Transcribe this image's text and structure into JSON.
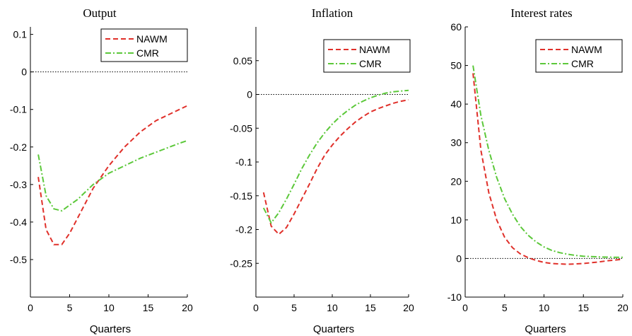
{
  "colors": {
    "NAWM": "#e0302a",
    "CMR": "#5cc83a",
    "zero_line": "#000000",
    "axis": "#000000"
  },
  "chart_data": [
    {
      "type": "line",
      "title": "Output",
      "xlabel": "Quarters",
      "ylabel": "",
      "xlim": [
        0,
        20
      ],
      "ylim": [
        -0.6,
        0.12
      ],
      "xticks": [
        0,
        5,
        10,
        15,
        20
      ],
      "xtick_labels": [
        "0",
        "5",
        "10",
        "15",
        "20"
      ],
      "yticks": [
        0.1,
        0,
        -0.1,
        -0.2,
        -0.3,
        -0.4,
        -0.5
      ],
      "ytick_labels": [
        "0.1",
        "0",
        "-0.1",
        "-0.2",
        "-0.3",
        "-0.4",
        "-0.5"
      ],
      "grid": false,
      "legend": "top-right",
      "zero_line": true,
      "x": [
        1,
        2,
        3,
        4,
        5,
        6,
        7,
        8,
        9,
        10,
        11,
        12,
        13,
        14,
        15,
        16,
        17,
        18,
        19,
        20
      ],
      "series": [
        {
          "name": "NAWM",
          "style": "dashed",
          "values": [
            -0.28,
            -0.42,
            -0.46,
            -0.46,
            -0.43,
            -0.39,
            -0.35,
            -0.31,
            -0.28,
            -0.25,
            -0.225,
            -0.2,
            -0.18,
            -0.16,
            -0.145,
            -0.13,
            -0.12,
            -0.11,
            -0.1,
            -0.09
          ]
        },
        {
          "name": "CMR",
          "style": "dashdot",
          "values": [
            -0.22,
            -0.33,
            -0.365,
            -0.37,
            -0.355,
            -0.34,
            -0.32,
            -0.3,
            -0.285,
            -0.27,
            -0.26,
            -0.25,
            -0.24,
            -0.23,
            -0.222,
            -0.214,
            -0.206,
            -0.198,
            -0.19,
            -0.183
          ]
        }
      ]
    },
    {
      "type": "line",
      "title": "Inflation",
      "xlabel": "Quarters",
      "ylabel": "",
      "xlim": [
        0,
        20
      ],
      "ylim": [
        -0.3,
        0.1
      ],
      "xticks": [
        0,
        5,
        10,
        15,
        20
      ],
      "xtick_labels": [
        "0",
        "5",
        "10",
        "15",
        "20"
      ],
      "yticks": [
        0.05,
        0,
        -0.05,
        -0.1,
        -0.15,
        -0.2,
        -0.25
      ],
      "ytick_labels": [
        "0.05",
        "0",
        "-0.05",
        "-0.1",
        "-0.15",
        "-0.2",
        "-0.25"
      ],
      "grid": false,
      "legend": "top-right",
      "zero_line": true,
      "x": [
        1,
        2,
        3,
        4,
        5,
        6,
        7,
        8,
        9,
        10,
        11,
        12,
        13,
        14,
        15,
        16,
        17,
        18,
        19,
        20
      ],
      "series": [
        {
          "name": "NAWM",
          "style": "dashed",
          "values": [
            -0.145,
            -0.195,
            -0.207,
            -0.197,
            -0.177,
            -0.155,
            -0.133,
            -0.11,
            -0.09,
            -0.075,
            -0.062,
            -0.051,
            -0.041,
            -0.033,
            -0.026,
            -0.021,
            -0.017,
            -0.013,
            -0.01,
            -0.008
          ]
        },
        {
          "name": "CMR",
          "style": "dashdot",
          "values": [
            -0.168,
            -0.19,
            -0.175,
            -0.155,
            -0.133,
            -0.11,
            -0.09,
            -0.072,
            -0.057,
            -0.044,
            -0.033,
            -0.024,
            -0.016,
            -0.01,
            -0.005,
            -0.001,
            0.002,
            0.004,
            0.005,
            0.006
          ]
        }
      ]
    },
    {
      "type": "line",
      "title": "Interest rates",
      "xlabel": "Quarters",
      "ylabel": "",
      "xlim": [
        0,
        20
      ],
      "ylim": [
        -10,
        60
      ],
      "xticks": [
        0,
        5,
        10,
        15,
        20
      ],
      "xtick_labels": [
        "0",
        "5",
        "10",
        "15",
        "20"
      ],
      "yticks": [
        60,
        50,
        40,
        30,
        20,
        10,
        0,
        -10
      ],
      "ytick_labels": [
        "60",
        "50",
        "40",
        "30",
        "20",
        "10",
        "0",
        "-10"
      ],
      "grid": false,
      "legend": "top-right",
      "zero_line": true,
      "x": [
        1,
        2,
        3,
        4,
        5,
        6,
        7,
        8,
        9,
        10,
        11,
        12,
        13,
        14,
        15,
        16,
        17,
        18,
        19,
        20
      ],
      "series": [
        {
          "name": "NAWM",
          "style": "dashed",
          "values": [
            48,
            28,
            17,
            10,
            5.5,
            2.8,
            1.2,
            0.2,
            -0.5,
            -1.0,
            -1.3,
            -1.4,
            -1.5,
            -1.4,
            -1.3,
            -1.1,
            -0.9,
            -0.6,
            -0.4,
            -0.2
          ]
        },
        {
          "name": "CMR",
          "style": "dashdot",
          "values": [
            50,
            37,
            28,
            21,
            15.5,
            11.5,
            8.3,
            6,
            4.3,
            3,
            2.1,
            1.5,
            1.1,
            0.8,
            0.6,
            0.5,
            0.4,
            0.35,
            0.3,
            0.3
          ]
        }
      ]
    }
  ]
}
